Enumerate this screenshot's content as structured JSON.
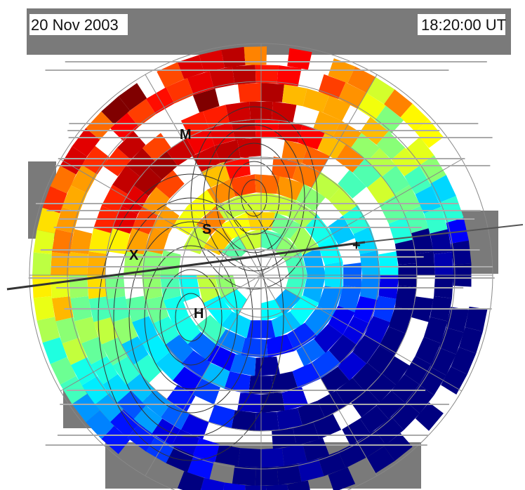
{
  "header": {
    "date": "20 Nov 2003",
    "time": "18:20:00 UT"
  },
  "markers": [
    {
      "label": "M"
    },
    {
      "label": "S"
    },
    {
      "label": "X"
    },
    {
      "label": "+"
    },
    {
      "label": "H"
    }
  ]
}
